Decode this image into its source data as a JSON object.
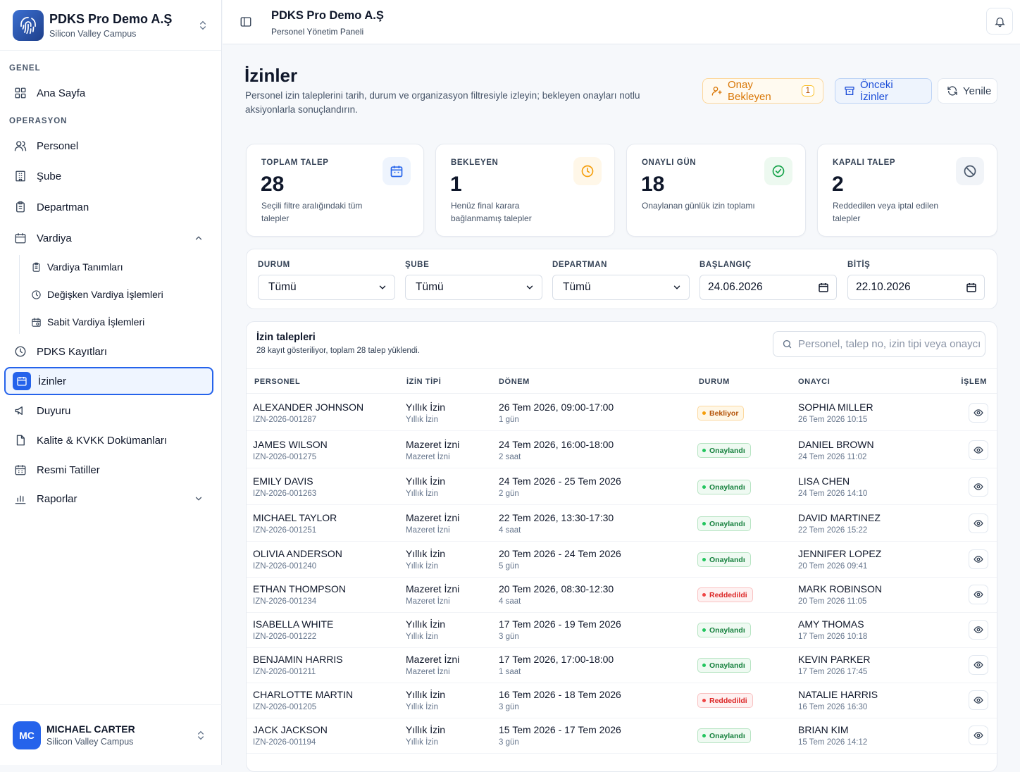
{
  "brand": {
    "name": "PDKS Pro Demo A.Ş",
    "subtitle": "Silicon Valley Campus"
  },
  "sidebar": {
    "section_general": "GENEL",
    "section_operations": "OPERASYON",
    "items": {
      "home": "Ana Sayfa",
      "personnel": "Personel",
      "branch": "Şube",
      "department": "Departman",
      "shift": "Vardiya",
      "pdks_records": "PDKS Kayıtları",
      "leaves": "İzinler",
      "announcements": "Duyuru",
      "quality_docs": "Kalite & KVKK Dokümanları",
      "holidays": "Resmi Tatiller",
      "reports": "Raporlar"
    },
    "shift_sub": {
      "definitions": "Vardiya Tanımları",
      "variable": "Değişken Vardiya İşlemleri",
      "fixed": "Sabit Vardiya İşlemleri"
    }
  },
  "user": {
    "initials": "MC",
    "name": "MICHAEL CARTER",
    "campus": "Silicon Valley Campus"
  },
  "topbar": {
    "title": "PDKS Pro Demo A.Ş",
    "subtitle": "Personel Yönetim Paneli"
  },
  "page": {
    "title": "İzinler",
    "description": "Personel izin taleplerini tarih, durum ve organizasyon filtresiyle izleyin; bekleyen onayları notlu aksiyonlarla sonuçlandırın."
  },
  "actions": {
    "pending_label": "Onay Bekleyen",
    "pending_count": "1",
    "past_label": "Önceki İzinler",
    "refresh_label": "Yenile"
  },
  "stats": [
    {
      "label": "TOPLAM TALEP",
      "value": "28",
      "desc": "Seçili filtre aralığındaki tüm talepler",
      "icon": "calendar-icon",
      "color": "#2563eb",
      "bg": "#eef4fd"
    },
    {
      "label": "BEKLEYEN",
      "value": "1",
      "desc": "Henüz final karara bağlanmamış talepler",
      "icon": "clock-icon",
      "color": "#f59e0b",
      "bg": "#fff7e8"
    },
    {
      "label": "ONAYLI GÜN",
      "value": "18",
      "desc": "Onaylanan günlük izin toplamı",
      "icon": "check-circle-icon",
      "color": "#16a34a",
      "bg": "#edf9f0"
    },
    {
      "label": "KAPALI TALEP",
      "value": "2",
      "desc": "Reddedilen veya iptal edilen talepler",
      "icon": "ban-icon",
      "color": "#475569",
      "bg": "#f1f4f8"
    }
  ],
  "filters": {
    "status": {
      "label": "DURUM",
      "value": "Tümü"
    },
    "branch": {
      "label": "ŞUBE",
      "value": "Tümü"
    },
    "department": {
      "label": "DEPARTMAN",
      "value": "Tümü"
    },
    "start": {
      "label": "BAŞLANGIÇ",
      "value": "24.06.2026"
    },
    "end": {
      "label": "BİTİŞ",
      "value": "22.10.2026"
    }
  },
  "table": {
    "title": "İzin talepleri",
    "subtitle": "28 kayıt gösteriliyor, toplam 28 talep yüklendi.",
    "search_placeholder": "Personel, talep no, izin tipi veya onaycı ara",
    "columns": {
      "personnel": "PERSONEL",
      "type": "İZİN TİPİ",
      "period": "DÖNEM",
      "status": "DURUM",
      "approver": "ONAYCI",
      "action": "İŞLEM"
    },
    "rows": [
      {
        "name": "ALEXANDER JOHNSON",
        "id": "IZN-2026-001287",
        "type": "Yıllık İzin",
        "type_sub": "Yıllık İzin",
        "period": "26 Tem 2026, 09:00-17:00",
        "duration": "1 gün",
        "status": "Bekliyor",
        "status_kind": "pending",
        "approver": "SOPHIA MILLER",
        "approved_at": "26 Tem 2026 10:15"
      },
      {
        "name": "JAMES WILSON",
        "id": "IZN-2026-001275",
        "type": "Mazeret İzni",
        "type_sub": "Mazeret İzni",
        "period": "24 Tem 2026, 16:00-18:00",
        "duration": "2 saat",
        "status": "Onaylandı",
        "status_kind": "approved",
        "approver": "DANIEL BROWN",
        "approved_at": "24 Tem 2026 11:02"
      },
      {
        "name": "EMILY DAVIS",
        "id": "IZN-2026-001263",
        "type": "Yıllık İzin",
        "type_sub": "Yıllık İzin",
        "period": "24 Tem 2026 - 25 Tem 2026",
        "duration": "2 gün",
        "status": "Onaylandı",
        "status_kind": "approved",
        "approver": "LISA CHEN",
        "approved_at": "24 Tem 2026 14:10"
      },
      {
        "name": "MICHAEL TAYLOR",
        "id": "IZN-2026-001251",
        "type": "Mazeret İzni",
        "type_sub": "Mazeret İzni",
        "period": "22 Tem 2026, 13:30-17:30",
        "duration": "4 saat",
        "status": "Onaylandı",
        "status_kind": "approved",
        "approver": "DAVID MARTINEZ",
        "approved_at": "22 Tem 2026 15:22"
      },
      {
        "name": "OLIVIA ANDERSON",
        "id": "IZN-2026-001240",
        "type": "Yıllık İzin",
        "type_sub": "Yıllık İzin",
        "period": "20 Tem 2026 - 24 Tem 2026",
        "duration": "5 gün",
        "status": "Onaylandı",
        "status_kind": "approved",
        "approver": "JENNIFER LOPEZ",
        "approved_at": "20 Tem 2026 09:41"
      },
      {
        "name": "ETHAN THOMPSON",
        "id": "IZN-2026-001234",
        "type": "Mazeret İzni",
        "type_sub": "Mazeret İzni",
        "period": "20 Tem 2026, 08:30-12:30",
        "duration": "4 saat",
        "status": "Reddedildi",
        "status_kind": "rejected",
        "approver": "MARK ROBINSON",
        "approved_at": "20 Tem 2026 11:05"
      },
      {
        "name": "ISABELLA WHITE",
        "id": "IZN-2026-001222",
        "type": "Yıllık İzin",
        "type_sub": "Yıllık İzin",
        "period": "17 Tem 2026 - 19 Tem 2026",
        "duration": "3 gün",
        "status": "Onaylandı",
        "status_kind": "approved",
        "approver": "AMY THOMAS",
        "approved_at": "17 Tem 2026 10:18"
      },
      {
        "name": "BENJAMIN HARRIS",
        "id": "IZN-2026-001211",
        "type": "Mazeret İzni",
        "type_sub": "Mazeret İzni",
        "period": "17 Tem 2026, 17:00-18:00",
        "duration": "1 saat",
        "status": "Onaylandı",
        "status_kind": "approved",
        "approver": "KEVIN PARKER",
        "approved_at": "17 Tem 2026 17:45"
      },
      {
        "name": "CHARLOTTE MARTIN",
        "id": "IZN-2026-001205",
        "type": "Yıllık İzin",
        "type_sub": "Yıllık İzin",
        "period": "16 Tem 2026 - 18 Tem 2026",
        "duration": "3 gün",
        "status": "Reddedildi",
        "status_kind": "rejected",
        "approver": "NATALIE HARRIS",
        "approved_at": "16 Tem 2026 16:30"
      },
      {
        "name": "JACK JACKSON",
        "id": "IZN-2026-001194",
        "type": "Yıllık İzin",
        "type_sub": "Yıllık İzin",
        "period": "15 Tem 2026 - 17 Tem 2026",
        "duration": "3 gün",
        "status": "Onaylandı",
        "status_kind": "approved",
        "approver": "BRIAN KIM",
        "approved_at": "15 Tem 2026 14:12"
      }
    ]
  }
}
